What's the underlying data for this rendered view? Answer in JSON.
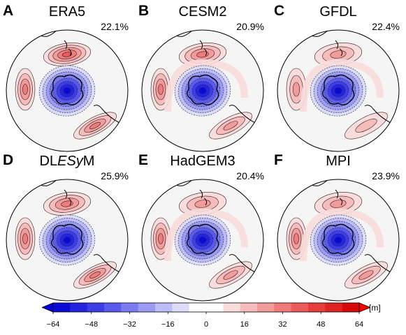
{
  "panels": [
    {
      "letter": "A",
      "name": "ERA5",
      "pct": "22.1%"
    },
    {
      "letter": "B",
      "name": "CESM2",
      "pct": "20.9%"
    },
    {
      "letter": "C",
      "name": "GFDL",
      "pct": "22.4%"
    },
    {
      "letter": "D",
      "name": "DLESyM",
      "pct": "25.9%"
    },
    {
      "letter": "E",
      "name": "HadGEM3",
      "pct": "20.4%"
    },
    {
      "letter": "F",
      "name": "MPI",
      "pct": "23.9%"
    }
  ],
  "colorbar": {
    "unit": "[m]",
    "ticks": [
      "−64",
      "−48",
      "−32",
      "−16",
      "0",
      "16",
      "32",
      "48",
      "64"
    ],
    "colors": [
      "#0a0ad6",
      "#2323e0",
      "#3d3de6",
      "#5a5aec",
      "#7b7bf0",
      "#9b9bf3",
      "#bcbcf6",
      "#dcdcfa",
      "#ffffff",
      "#ffffff",
      "#fadcdc",
      "#f6bcbc",
      "#f39b9b",
      "#f07b7b",
      "#ec5a5a",
      "#e63d3d",
      "#e02323",
      "#d60a0a"
    ],
    "extend_left_color": "#0000e0",
    "extend_right_color": "#ff0000"
  }
}
